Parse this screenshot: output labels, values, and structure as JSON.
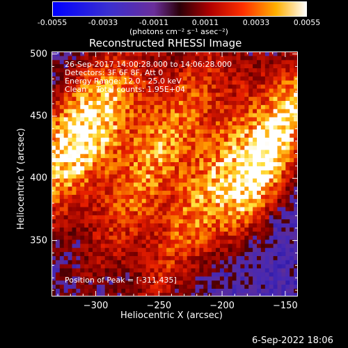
{
  "colorbar": {
    "ticks": [
      "-0.0055",
      "-0.0033",
      "-0.0011",
      "0.0011",
      "0.0033",
      "0.0055"
    ],
    "units": "(photons cm⁻² s⁻¹ asec⁻²)"
  },
  "chart_data": {
    "type": "heatmap",
    "title": "Reconstructed RHESSI Image",
    "xlabel": "Heliocentric X (arcsec)",
    "ylabel": "Heliocentric Y (arcsec)",
    "xlim": [
      -335,
      -140
    ],
    "ylim": [
      305,
      502
    ],
    "x_ticks": [
      "-300",
      "-250",
      "-200",
      "-150"
    ],
    "y_ticks": [
      "350",
      "400",
      "450",
      "500"
    ],
    "colorscale": "rhessi-red-temperature",
    "clim": [
      -0.0055,
      0.0055
    ],
    "peak": [
      -311,
      435
    ]
  },
  "annotations": {
    "time_range": "26-Sep-2017 14:00:28.000 to 14:06:28.000",
    "detectors": "Detectors: 3F 6F 8F, Att 0",
    "energy": "Energy Range: 12.0 - 25.0 keV",
    "clean": "Clean    Total counts: 1.95E+04",
    "peak_text": "Position of Peak = [-311,435]"
  },
  "footer": {
    "date": "6-Sep-2022 18:06"
  }
}
